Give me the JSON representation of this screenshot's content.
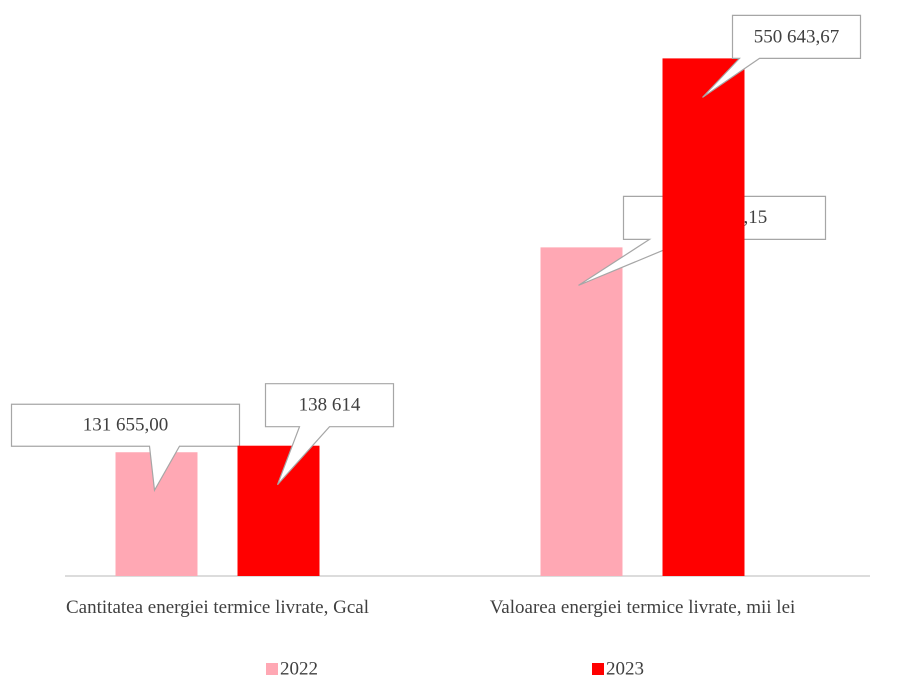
{
  "chart_data": {
    "type": "bar",
    "categories": [
      "Cantitatea energiei termice livrate, Gcal",
      "Valoarea energiei termice livrate, mii lei"
    ],
    "series": [
      {
        "name": "2022",
        "color": "#ffa8b4",
        "values": [
          131655,
          349597.15
        ],
        "value_labels": [
          "131 655,00",
          "349 597,15"
        ]
      },
      {
        "name": "2023",
        "color": "#ff0000",
        "values": [
          138614,
          550643.67
        ],
        "value_labels": [
          "138 614",
          "550 643,67"
        ]
      }
    ],
    "ylim": [
      0,
      600000
    ],
    "legend": "bottom"
  }
}
